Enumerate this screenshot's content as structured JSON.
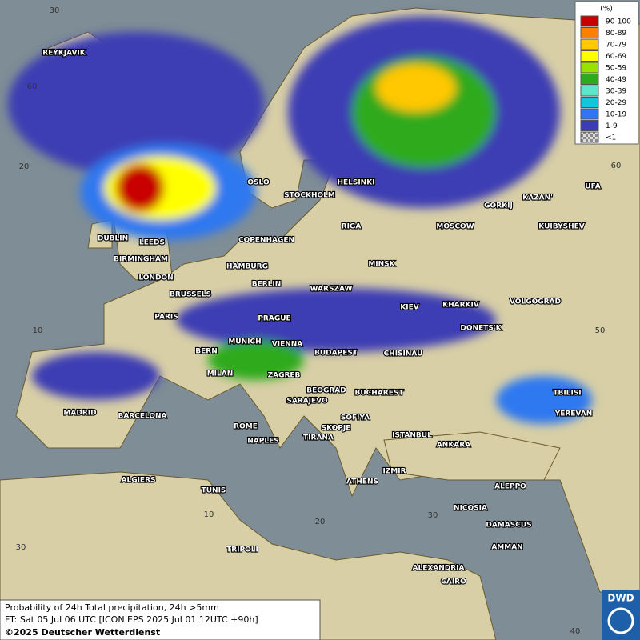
{
  "legend": {
    "unit": "(%)",
    "items": [
      {
        "label": "90-100",
        "color": "#c80000"
      },
      {
        "label": "80-89",
        "color": "#ff7f00"
      },
      {
        "label": "70-79",
        "color": "#ffc800"
      },
      {
        "label": "60-69",
        "color": "#ffff00"
      },
      {
        "label": "50-59",
        "color": "#9be100"
      },
      {
        "label": "40-49",
        "color": "#2faa1e"
      },
      {
        "label": "30-39",
        "color": "#5ee6c8"
      },
      {
        "label": "20-29",
        "color": "#14c3dc"
      },
      {
        "label": "10-19",
        "color": "#2d78f0"
      },
      {
        "label": "1-9",
        "color": "#3c3cb4"
      },
      {
        "label": "<1",
        "color": "checker"
      }
    ]
  },
  "cities": [
    "REYKJAVIK",
    "OSLO",
    "STOCKHOLM",
    "HELSINKI",
    "DUBLIN",
    "LEEDS",
    "COPENHAGEN",
    "RIGA",
    "GORKIJ",
    "KAZAN'",
    "UFA",
    "MOSCOW",
    "KUIBYSHEV",
    "BIRMINGHAM",
    "HAMBURG",
    "MINSK",
    "LONDON",
    "BERLIN",
    "WARSZAW",
    "BRUSSELS",
    "VOLGOGRAD",
    "KIEV",
    "KHARKIV",
    "PARIS",
    "PRAGUE",
    "DONETS'K",
    "MUNICH",
    "VIENNA",
    "BERN",
    "BUDAPEST",
    "CHISINAU",
    "MILAN",
    "ZAGREB",
    "BEOGRAD",
    "BUCHAREST",
    "TBILISI",
    "SARAJEVO",
    "MADRID",
    "BARCELONA",
    "SOFIYA",
    "YEREVAN",
    "ROME",
    "SKOPJE",
    "TIRANA",
    "ISTANBUL",
    "NAPLES",
    "ANKARA",
    "IZMIR",
    "ALGIERS",
    "ATHENS",
    "ALEPPO",
    "TUNIS",
    "NICOSIA",
    "DAMASCUS",
    "AMMAN",
    "TRIPOLI",
    "ALEXANDRIA",
    "CAIRO"
  ],
  "grid_labels": [
    "30",
    "60",
    "20",
    "10",
    "10",
    "30",
    "20",
    "30",
    "40",
    "50",
    "60"
  ],
  "footer": {
    "line1": "Probability of 24h Total precipitation, 24h >5mm",
    "line2": "FT: Sat 05 Jul 06 UTC [ICON EPS 2025 Jul 01 12UTC +90h]",
    "line3": "©2025 Deutscher Wetterdienst"
  },
  "logo": "DWD"
}
